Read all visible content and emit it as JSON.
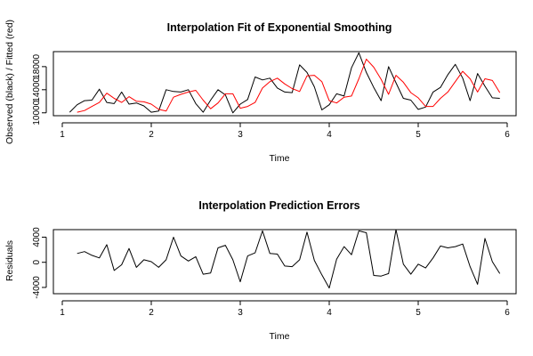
{
  "chart_data": [
    {
      "type": "line",
      "title": "Interpolation Fit of Exponential Smoothing",
      "xlabel": "Time",
      "ylabel": "Observed (black) / Fitted (red)",
      "xlim": [
        0.9,
        6.1
      ],
      "ylim": [
        9500,
        20600
      ],
      "x_ticks": [
        1,
        2,
        3,
        4,
        5,
        6
      ],
      "y_ticks": [
        10000,
        14000,
        18000
      ],
      "y_tick_labels": [
        "10000",
        "14000",
        "18000"
      ],
      "series": [
        {
          "role": "observed",
          "color": "#000000",
          "x": [
            1.0833,
            1.1667,
            1.25,
            1.3333,
            1.4167,
            1.5,
            1.5833,
            1.6667,
            1.75,
            1.8333,
            1.9167,
            2.0,
            2.0833,
            2.1667,
            2.25,
            2.3333,
            2.4167,
            2.5,
            2.5833,
            2.6667,
            2.75,
            2.8333,
            2.9167,
            3.0,
            3.0833,
            3.1667,
            3.25,
            3.3333,
            3.4167,
            3.5,
            3.5833,
            3.6667,
            3.75,
            3.8333,
            3.9167,
            4.0,
            4.0833,
            4.1667,
            4.25,
            4.3333,
            4.4167,
            4.5,
            4.5833,
            4.6667,
            4.75,
            4.8333,
            4.9167,
            5.0,
            5.0833,
            5.1667,
            5.25,
            5.3333,
            5.4167,
            5.5,
            5.5833,
            5.6667,
            5.75,
            5.8333,
            5.9167
          ],
          "values": [
            10100,
            11400,
            12100,
            12200,
            14100,
            11800,
            11600,
            13600,
            11500,
            11700,
            11200,
            10100,
            10300,
            14000,
            13700,
            13600,
            14000,
            11600,
            10100,
            12200,
            14000,
            13100,
            10000,
            11500,
            12300,
            16200,
            15700,
            16000,
            14300,
            13600,
            13500,
            18300,
            17000,
            14500,
            10500,
            11400,
            13300,
            12900,
            17800,
            20400,
            17000,
            14400,
            12100,
            18000,
            15200,
            12500,
            12200,
            10600,
            11000,
            13600,
            14400,
            16600,
            18400,
            16000,
            12100,
            16800,
            14600,
            12600,
            12500
          ]
        },
        {
          "role": "fitted",
          "color": "#ff0000",
          "x": [
            1.1667,
            1.25,
            1.3333,
            1.4167,
            1.5,
            1.5833,
            1.6667,
            1.75,
            1.8333,
            1.9167,
            2.0,
            2.0833,
            2.1667,
            2.25,
            2.3333,
            2.4167,
            2.5,
            2.5833,
            2.6667,
            2.75,
            2.8333,
            2.9167,
            3.0,
            3.0833,
            3.1667,
            3.25,
            3.3333,
            3.4167,
            3.5,
            3.5833,
            3.6667,
            3.75,
            3.8333,
            3.9167,
            4.0,
            4.0833,
            4.1667,
            4.25,
            4.3333,
            4.4167,
            4.5,
            4.5833,
            4.6667,
            4.75,
            4.8333,
            4.9167,
            5.0,
            5.0833,
            5.1667,
            5.25,
            5.3333,
            5.4167,
            5.5,
            5.5833,
            5.6667,
            5.75,
            5.8333,
            5.9167
          ],
          "values": [
            10100,
            10400,
            11100,
            11800,
            13400,
            12500,
            11800,
            12800,
            12000,
            11900,
            11500,
            10600,
            10300,
            12700,
            13200,
            13600,
            13900,
            12200,
            10700,
            11700,
            13300,
            13300,
            10800,
            11100,
            11800,
            14300,
            15400,
            16000,
            15000,
            14200,
            13700,
            16400,
            16500,
            15400,
            12100,
            11700,
            12700,
            12900,
            15900,
            19300,
            17900,
            15800,
            13200,
            16500,
            15300,
            13500,
            12600,
            11100,
            11100,
            12500,
            13600,
            15400,
            17200,
            15900,
            13600,
            15900,
            15600,
            13500
          ]
        }
      ]
    },
    {
      "type": "line",
      "title": "Interpolation Prediction Errors",
      "xlabel": "Time",
      "ylabel": "Residuals",
      "xlim": [
        0.9,
        6.1
      ],
      "ylim": [
        -5000,
        5200
      ],
      "x_ticks": [
        1,
        2,
        3,
        4,
        5,
        6
      ],
      "y_ticks": [
        -4000,
        0,
        4000
      ],
      "y_tick_labels": [
        "-4000",
        "0",
        "4000"
      ],
      "series": [
        {
          "role": "residuals",
          "color": "#000000",
          "x": [
            1.1667,
            1.25,
            1.3333,
            1.4167,
            1.5,
            1.5833,
            1.6667,
            1.75,
            1.8333,
            1.9167,
            2.0,
            2.0833,
            2.1667,
            2.25,
            2.3333,
            2.4167,
            2.5,
            2.5833,
            2.6667,
            2.75,
            2.8333,
            2.9167,
            3.0,
            3.0833,
            3.1667,
            3.25,
            3.3333,
            3.4167,
            3.5,
            3.5833,
            3.6667,
            3.75,
            3.8333,
            3.9167,
            4.0,
            4.0833,
            4.1667,
            4.25,
            4.3333,
            4.4167,
            4.5,
            4.5833,
            4.6667,
            4.75,
            4.8333,
            4.9167,
            5.0,
            5.0833,
            5.1667,
            5.25,
            5.3333,
            5.4167,
            5.5,
            5.5833,
            5.6667,
            5.75,
            5.8333,
            5.9167
          ],
          "values": [
            1400,
            1700,
            1100,
            700,
            2800,
            -1300,
            -400,
            2200,
            -800,
            400,
            100,
            -800,
            400,
            4000,
            1000,
            200,
            900,
            -1900,
            -1700,
            2300,
            2700,
            400,
            -3100,
            1000,
            1500,
            5000,
            1400,
            1300,
            -600,
            -700,
            400,
            4800,
            300,
            -2000,
            -4100,
            500,
            2500,
            1200,
            5000,
            4700,
            -2100,
            -2200,
            -1800,
            5200,
            -300,
            -1900,
            -300,
            -900,
            700,
            2600,
            2300,
            2500,
            2900,
            -700,
            -3500,
            3800,
            100,
            -1800
          ]
        }
      ]
    }
  ]
}
